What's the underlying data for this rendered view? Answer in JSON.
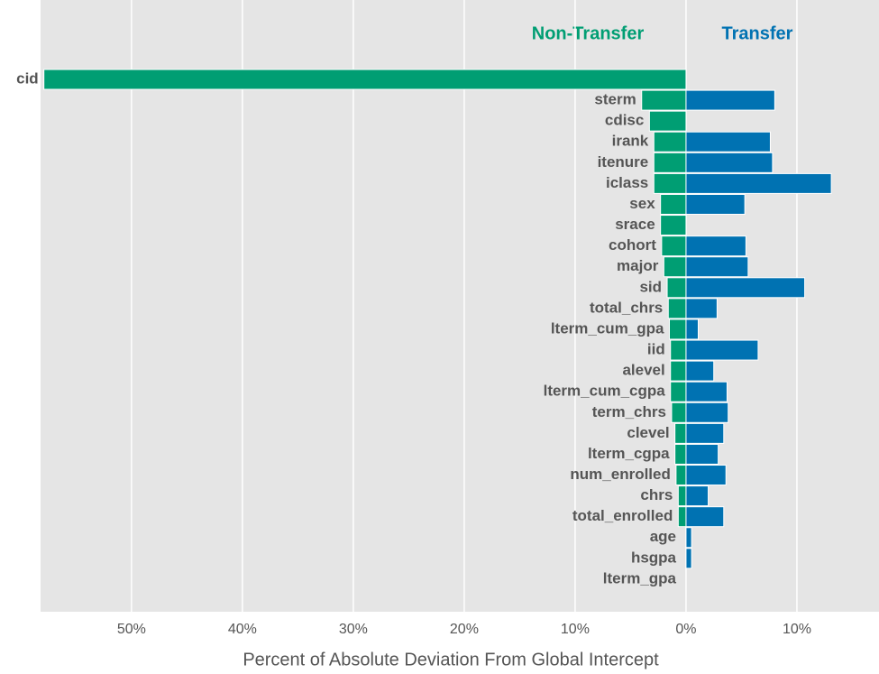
{
  "chart_data": {
    "type": "diverging-barh",
    "xlabel": "Percent of Absolute Deviation From Global Intercept",
    "categories": [
      "cid",
      "sterm",
      "cdisc",
      "irank",
      "itenure",
      "iclass",
      "sex",
      "srace",
      "cohort",
      "major",
      "sid",
      "total_chrs",
      "lterm_cum_gpa",
      "iid",
      "alevel",
      "lterm_cum_cgpa",
      "term_chrs",
      "clevel",
      "lterm_cgpa",
      "num_enrolled",
      "chrs",
      "total_enrolled",
      "age",
      "hsgpa",
      "lterm_gpa"
    ],
    "series": [
      {
        "name": "Non-Transfer",
        "color": "#009e73",
        "values": [
          -57.9,
          -4.0,
          -3.3,
          -2.9,
          -2.9,
          -2.9,
          -2.3,
          -2.3,
          -2.2,
          -2.0,
          -1.7,
          -1.6,
          -1.5,
          -1.4,
          -1.4,
          -1.4,
          -1.3,
          -1.0,
          -1.0,
          -0.9,
          -0.7,
          -0.7,
          0,
          0,
          0
        ]
      },
      {
        "name": "Transfer",
        "color": "#0072b2",
        "values": [
          0,
          8.0,
          0,
          7.6,
          7.8,
          13.1,
          5.3,
          0,
          5.4,
          5.6,
          10.7,
          2.8,
          1.1,
          6.5,
          2.5,
          3.7,
          3.8,
          3.4,
          2.9,
          3.6,
          2.0,
          3.4,
          0.5,
          0.5,
          0
        ]
      }
    ],
    "xlim": [
      -58.2,
      17.4
    ],
    "xticks": [
      {
        "value": -50,
        "label": "50%"
      },
      {
        "value": -40,
        "label": "40%"
      },
      {
        "value": -30,
        "label": "30%"
      },
      {
        "value": -20,
        "label": "20%"
      },
      {
        "value": -10,
        "label": "10%"
      },
      {
        "value": 0,
        "label": "0%"
      },
      {
        "value": 10,
        "label": "10%"
      }
    ],
    "grid": true
  }
}
